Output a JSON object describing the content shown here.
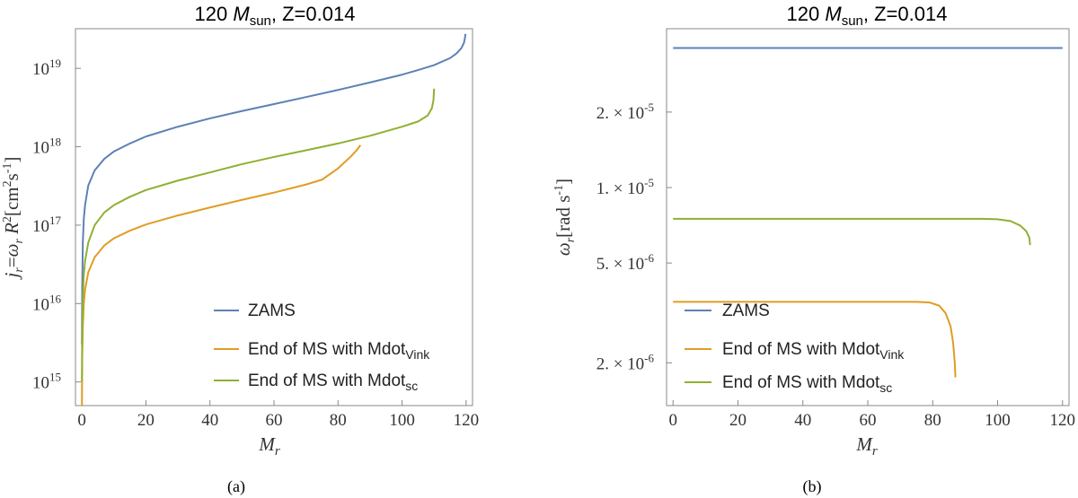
{
  "chart_data": [
    {
      "id": "a",
      "type": "line",
      "title_prefix": "120 ",
      "title_mass": "M",
      "title_mass_sub": "sun",
      "title_suffix": ", Z=0.014",
      "caption": "(a)",
      "xlabel": "M",
      "xlabel_sub": "r",
      "ylabel": "j_r=ω_r R^2 [cm^2 s^-1]",
      "yscale": "log",
      "xlim": [
        -2,
        122
      ],
      "ylim": [
        500000000000000.0,
        3.2e+19
      ],
      "xticks": [
        0,
        20,
        40,
        60,
        80,
        100,
        120
      ],
      "yticks": [
        {
          "value": 1000000000000000.0,
          "exp": "15"
        },
        {
          "value": 1e+16,
          "exp": "16"
        },
        {
          "value": 1e+17,
          "exp": "17"
        },
        {
          "value": 1e+18,
          "exp": "18"
        },
        {
          "value": 1e+19,
          "exp": "19"
        }
      ],
      "series": [
        {
          "name": "ZAMS",
          "legend_base": "ZAMS",
          "legend_sub": "",
          "color": "#5e81b5",
          "x": [
            0.02,
            0.1,
            0.3,
            0.6,
            1,
            2,
            4,
            7,
            10,
            15,
            20,
            30,
            40,
            50,
            60,
            70,
            80,
            90,
            100,
            105,
            110,
            115,
            117,
            118.5,
            119.3,
            119.6,
            119.8
          ],
          "y": [
            3000000000000000.0,
            1.5e+16,
            6e+16,
            1.2e+17,
            1.8e+17,
            3.2e+17,
            5e+17,
            7e+17,
            8.7e+17,
            1.1e+18,
            1.35e+18,
            1.8e+18,
            2.3e+18,
            2.85e+18,
            3.5e+18,
            4.3e+18,
            5.3e+18,
            6.6e+18,
            8.3e+18,
            9.5e+18,
            1.1e+19,
            1.35e+19,
            1.55e+19,
            1.8e+19,
            2.1e+19,
            2.4e+19,
            2.75e+19
          ]
        },
        {
          "name": "End of MS with Mdot_Vink",
          "legend_base": "End of MS with Mdot",
          "legend_sub": "Vink",
          "color": "#e19c24",
          "x": [
            0.02,
            0.1,
            0.3,
            0.6,
            1,
            2,
            4,
            7,
            10,
            15,
            20,
            30,
            40,
            50,
            60,
            70,
            75,
            80,
            84,
            86,
            87
          ],
          "y": [
            500000000000000.0,
            2000000000000000.0,
            5000000000000000.0,
            1e+16,
            1.5e+16,
            2.5e+16,
            3.9e+16,
            5.5e+16,
            6.8e+16,
            8.5e+16,
            1.02e+17,
            1.33e+17,
            1.68e+17,
            2.1e+17,
            2.6e+17,
            3.3e+17,
            3.8e+17,
            5.3e+17,
            7.5e+17,
            9.2e+17,
            1.05e+18
          ]
        },
        {
          "name": "End of MS with Mdot_sc",
          "legend_base": "End of MS with Mdot",
          "legend_sub": "sc",
          "color": "#8fb032",
          "x": [
            0.02,
            0.1,
            0.3,
            0.6,
            1,
            2,
            4,
            7,
            10,
            15,
            20,
            30,
            40,
            50,
            60,
            70,
            80,
            90,
            100,
            105,
            108,
            109.3,
            109.8,
            110
          ],
          "y": [
            1000000000000000.0,
            4000000000000000.0,
            1.2e+16,
            2.3e+16,
            3.5e+16,
            6e+16,
            1e+17,
            1.45e+17,
            1.8e+17,
            2.3e+17,
            2.8e+17,
            3.7e+17,
            4.7e+17,
            6e+17,
            7.4e+17,
            9e+17,
            1.1e+18,
            1.38e+18,
            1.8e+18,
            2.1e+18,
            2.5e+18,
            3.1e+18,
            3.9e+18,
            5.5e+18
          ]
        }
      ]
    },
    {
      "id": "b",
      "type": "line",
      "title_prefix": "120 ",
      "title_mass": "M",
      "title_mass_sub": "sun",
      "title_suffix": ", Z=0.014",
      "caption": "(b)",
      "xlabel": "M",
      "xlabel_sub": "r",
      "ylabel": "ω_r [rad s^-1]",
      "yscale": "log",
      "xlim": [
        -2,
        122
      ],
      "ylim": [
        1.35e-06,
        4.3e-05
      ],
      "xticks": [
        0,
        20,
        40,
        60,
        80,
        100,
        120
      ],
      "yticks": [
        {
          "value": 2e-06,
          "mant": "2.",
          "exp": "-6"
        },
        {
          "value": 5e-06,
          "mant": "5.",
          "exp": "-6"
        },
        {
          "value": 1e-05,
          "mant": "1.",
          "exp": "-5"
        },
        {
          "value": 2e-05,
          "mant": "2.",
          "exp": "-5"
        }
      ],
      "series": [
        {
          "name": "ZAMS",
          "legend_base": "ZAMS",
          "legend_sub": "",
          "color": "#5e81b5",
          "x": [
            0,
            20,
            40,
            60,
            80,
            100,
            120
          ],
          "y": [
            3.6e-05,
            3.6e-05,
            3.6e-05,
            3.6e-05,
            3.6e-05,
            3.6e-05,
            3.6e-05
          ]
        },
        {
          "name": "End of MS with Mdot_Vink",
          "legend_base": "End of MS with Mdot",
          "legend_sub": "Vink",
          "color": "#e19c24",
          "x": [
            0,
            20,
            40,
            60,
            75,
            79,
            82,
            84,
            85.5,
            86.3,
            86.8,
            87
          ],
          "y": [
            3.5e-06,
            3.5e-06,
            3.5e-06,
            3.5e-06,
            3.5e-06,
            3.48e-06,
            3.38e-06,
            3.15e-06,
            2.8e-06,
            2.4e-06,
            2e-06,
            1.75e-06
          ]
        },
        {
          "name": "End of MS with Mdot_sc",
          "legend_base": "End of MS with Mdot",
          "legend_sub": "sc",
          "color": "#8fb032",
          "x": [
            0,
            20,
            40,
            60,
            80,
            95,
            100,
            104,
            107,
            108.8,
            109.8,
            110
          ],
          "y": [
            7.5e-06,
            7.5e-06,
            7.5e-06,
            7.5e-06,
            7.5e-06,
            7.5e-06,
            7.47e-06,
            7.35e-06,
            7.05e-06,
            6.7e-06,
            6.3e-06,
            5.9e-06
          ]
        }
      ]
    }
  ]
}
